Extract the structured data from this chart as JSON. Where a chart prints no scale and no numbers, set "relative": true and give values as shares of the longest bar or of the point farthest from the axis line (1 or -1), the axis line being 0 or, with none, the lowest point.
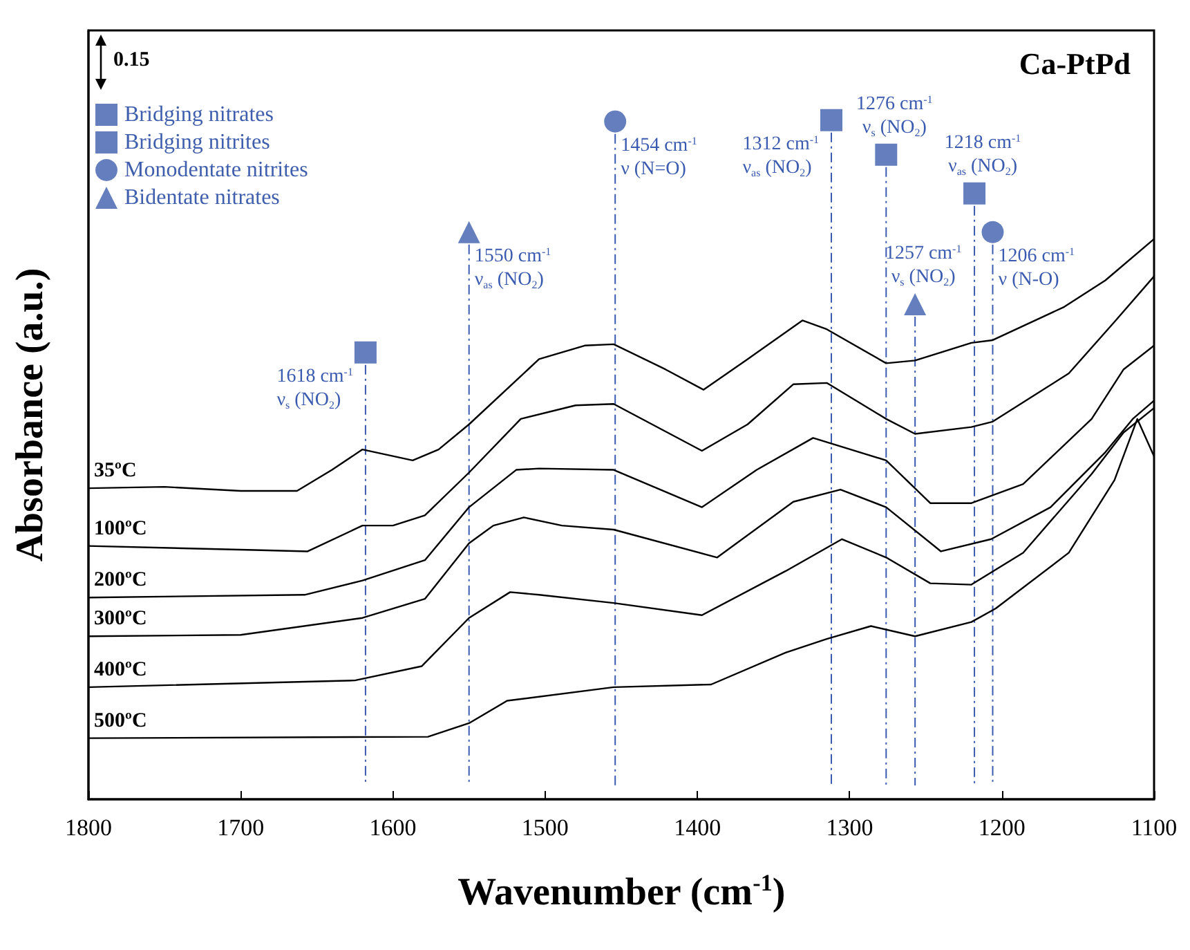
{
  "chart_data": {
    "type": "line",
    "title": "Ca-PtPd",
    "xlabel": "Wavenumber (cm$^{-1}$)",
    "ylabel": "Absorbance (a.u.)",
    "relative": true,
    "xlim": [
      1800,
      1100
    ],
    "xticks": [
      1800,
      1700,
      1600,
      1500,
      1400,
      1300,
      1200,
      1100
    ],
    "tick_labels": "x",
    "legend": "top left",
    "annotations": [
      "0.15"
    ],
    "series": [
      {
        "name": "35ºC",
        "color": "#000000",
        "x": [
          1800,
          1750,
          1700,
          1663,
          1640,
          1620,
          1587,
          1570,
          1550,
          1504,
          1474,
          1455,
          1421,
          1396,
          1367,
          1331,
          1315,
          1276,
          1257,
          1220,
          1206,
          1159,
          1132,
          1100
        ],
        "values": [
          0.458,
          0.46,
          0.454,
          0.454,
          0.485,
          0.515,
          0.499,
          0.515,
          0.552,
          0.648,
          0.668,
          0.67,
          0.633,
          0.603,
          0.648,
          0.705,
          0.692,
          0.642,
          0.646,
          0.672,
          0.676,
          0.725,
          0.764,
          0.825
        ]
      },
      {
        "name": "100ºC",
        "color": "#000000",
        "x": [
          1800,
          1691,
          1656,
          1620,
          1600,
          1579,
          1550,
          1516,
          1480,
          1455,
          1397,
          1367,
          1337,
          1315,
          1276,
          1257,
          1220,
          1206,
          1156,
          1126,
          1100
        ],
        "values": [
          0.373,
          0.367,
          0.365,
          0.403,
          0.403,
          0.418,
          0.481,
          0.56,
          0.58,
          0.582,
          0.513,
          0.552,
          0.611,
          0.613,
          0.56,
          0.538,
          0.548,
          0.556,
          0.627,
          0.703,
          0.77
        ]
      },
      {
        "name": "200ºC",
        "color": "#000000",
        "x": [
          1800,
          1658,
          1620,
          1579,
          1550,
          1519,
          1504,
          1455,
          1397,
          1361,
          1324,
          1276,
          1247,
          1220,
          1186,
          1141,
          1120,
          1100
        ],
        "values": [
          0.297,
          0.301,
          0.322,
          0.352,
          0.43,
          0.485,
          0.487,
          0.485,
          0.43,
          0.485,
          0.532,
          0.499,
          0.436,
          0.436,
          0.464,
          0.56,
          0.633,
          0.668
        ]
      },
      {
        "name": "300ºC",
        "color": "#000000",
        "x": [
          1800,
          1700,
          1620,
          1579,
          1550,
          1534,
          1514,
          1489,
          1455,
          1387,
          1337,
          1306,
          1276,
          1240,
          1207,
          1168,
          1132,
          1114,
          1100
        ],
        "values": [
          0.24,
          0.242,
          0.267,
          0.295,
          0.377,
          0.403,
          0.415,
          0.403,
          0.397,
          0.356,
          0.438,
          0.456,
          0.43,
          0.365,
          0.383,
          0.43,
          0.511,
          0.56,
          0.587
        ]
      },
      {
        "name": "400ºC",
        "color": "#000000",
        "x": [
          1800,
          1625,
          1581,
          1550,
          1523,
          1504,
          1455,
          1397,
          1342,
          1305,
          1276,
          1247,
          1220,
          1186,
          1141,
          1120,
          1100
        ],
        "values": [
          0.165,
          0.175,
          0.196,
          0.267,
          0.305,
          0.301,
          0.289,
          0.271,
          0.336,
          0.383,
          0.356,
          0.318,
          0.316,
          0.363,
          0.479,
          0.54,
          0.576
        ]
      },
      {
        "name": "500ºC",
        "color": "#000000",
        "x": [
          1800,
          1577,
          1550,
          1525,
          1455,
          1391,
          1342,
          1315,
          1286,
          1257,
          1220,
          1204,
          1156,
          1126,
          1111,
          1100
        ],
        "values": [
          0.09,
          0.092,
          0.112,
          0.145,
          0.165,
          0.169,
          0.216,
          0.236,
          0.255,
          0.24,
          0.261,
          0.281,
          0.363,
          0.47,
          0.56,
          0.505
        ]
      },
      {
        "name": "Bridging nitrates",
        "type": "scatter",
        "marker": "square",
        "color": "#3f5fae",
        "x": [
          1618,
          1218
        ],
        "values": [
          0.658,
          0.892
        ]
      },
      {
        "name": "Bridging nitrites",
        "type": "scatter",
        "marker": "square",
        "color": "#3f5fae",
        "x": [
          1312,
          1276
        ],
        "values": [
          1.0,
          0.949
        ]
      },
      {
        "name": "Monodentate nitrites",
        "type": "scatter",
        "marker": "circle",
        "color": "#3f5fae",
        "x": [
          1454,
          1206
        ],
        "values": [
          0.998,
          0.835
        ]
      },
      {
        "name": "Bidentate nitrates",
        "type": "scatter",
        "marker": "triangle",
        "color": "#3f5fae",
        "x": [
          1550,
          1257
        ],
        "values": [
          0.835,
          0.729
        ]
      }
    ],
    "ref_lines": [
      {
        "axis": "x",
        "value": 1618,
        "label": "1618 cm$^{-1}$\nν$_{s}$ (NO$_{2}$)",
        "color": "#3a5bb0",
        "line_style": "dashed"
      },
      {
        "axis": "x",
        "value": 1550,
        "label": "1550 cm$^{-1}$\nν$_{as}$ (NO$_{2}$)",
        "color": "#3a5bb0",
        "line_style": "dashed"
      },
      {
        "axis": "x",
        "value": 1454,
        "label": "1454 cm$^{-1}$\nν (N=O)",
        "color": "#3a5bb0",
        "line_style": "dashed"
      },
      {
        "axis": "x",
        "value": 1312,
        "label": "1312 cm$^{-1}$\nν$_{as}$ (NO$_{2}$)",
        "color": "#3a5bb0",
        "line_style": "dashed"
      },
      {
        "axis": "x",
        "value": 1276,
        "label": "1276 cm$^{-1}$\nν$_{s}$ (NO$_{2}$)",
        "color": "#3a5bb0",
        "line_style": "dashed"
      },
      {
        "axis": "x",
        "value": 1257,
        "label": "1257 cm$^{-1}$\nν$_{s}$ (NO$_{2}$)",
        "color": "#3a5bb0",
        "line_style": "dashed"
      },
      {
        "axis": "x",
        "value": 1218,
        "label": "1218 cm$^{-1}$\nν$_{as}$ (NO$_{2}$)",
        "color": "#3a5bb0",
        "line_style": "dashed"
      },
      {
        "axis": "x",
        "value": 1206,
        "label": "1206 cm$^{-1}$\nν (N-O)",
        "color": "#3a5bb0",
        "line_style": "dashed"
      }
    ]
  }
}
